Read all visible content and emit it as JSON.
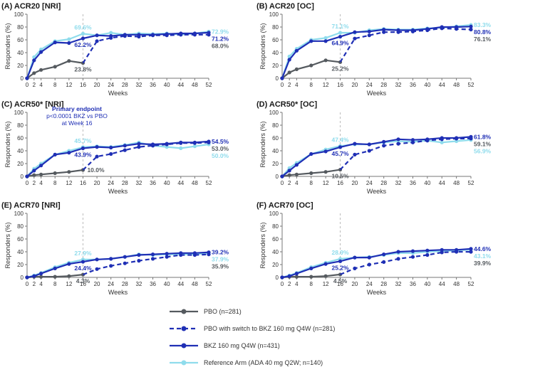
{
  "colors": {
    "pbo": "#555a5f",
    "switch": "#1f2fb5",
    "bkz": "#1f2fb5",
    "ref": "#8fdcec",
    "axis": "#777777",
    "refline": "#bbbbbb"
  },
  "legend": [
    {
      "key": "pbo",
      "label": "PBO (n=281)"
    },
    {
      "key": "switch",
      "label": "PBO with switch to BKZ 160 mg Q4W (n=281)"
    },
    {
      "key": "bkz",
      "label": "BKZ 160 mg Q4W (n=431)"
    },
    {
      "key": "ref",
      "label": "Reference Arm (ADA 40 mg Q2W; n=140)"
    }
  ],
  "chart_data": [
    {
      "type": "line",
      "title": "(A) ACR20 [NRI]",
      "xlabel": "Weeks",
      "ylabel": "Responders (%)",
      "xlim": [
        0,
        52
      ],
      "ylim": [
        0,
        100
      ],
      "xticks": [
        0,
        2,
        4,
        8,
        12,
        16,
        20,
        24,
        28,
        32,
        36,
        40,
        44,
        48,
        52
      ],
      "yticks": [
        0,
        20,
        40,
        60,
        80,
        100
      ],
      "series": [
        {
          "key": "pbo",
          "x": [
            0,
            2,
            4,
            8,
            12,
            16
          ],
          "y": [
            0,
            8,
            13,
            18,
            27,
            23.8
          ]
        },
        {
          "key": "switch",
          "x": [
            16,
            20,
            24,
            28,
            32,
            36,
            40,
            44,
            48,
            52
          ],
          "y": [
            23.8,
            58,
            63,
            66,
            65,
            67,
            67,
            68,
            68,
            68.0
          ]
        },
        {
          "key": "bkz",
          "x": [
            0,
            2,
            4,
            8,
            12,
            16,
            20,
            24,
            28,
            32,
            36,
            40,
            44,
            48,
            52
          ],
          "y": [
            0,
            28,
            41,
            56,
            55,
            62.2,
            67,
            66,
            68,
            68,
            68,
            69,
            70,
            70,
            71.2
          ]
        },
        {
          "key": "ref",
          "x": [
            0,
            2,
            4,
            8,
            12,
            16,
            20,
            24,
            28,
            32,
            36,
            40,
            44,
            48,
            52
          ],
          "y": [
            0,
            33,
            45,
            58,
            61,
            69.6,
            67,
            71,
            68,
            70,
            69,
            70,
            68,
            70,
            72.9
          ]
        }
      ],
      "annotations": [
        {
          "text": "69.6%",
          "key": "ref",
          "x": 16,
          "y": 69.6,
          "pos": "above"
        },
        {
          "text": "62.2%",
          "key": "bkz",
          "x": 16,
          "y": 62.2,
          "pos": "below"
        },
        {
          "text": "23.8%",
          "key": "pbo",
          "x": 16,
          "y": 23.8,
          "pos": "below"
        }
      ],
      "end_labels": [
        {
          "text": "72.9%",
          "key": "ref",
          "y": 72.9
        },
        {
          "text": "71.2%",
          "key": "bkz",
          "y": 71.2
        },
        {
          "text": "68.0%",
          "key": "pbo",
          "y": 68.0
        }
      ],
      "note": []
    },
    {
      "type": "line",
      "title": "(B) ACR20 [OC]",
      "xlabel": "Weeks",
      "ylabel": "Responders (%)",
      "xlim": [
        0,
        52
      ],
      "ylim": [
        0,
        100
      ],
      "xticks": [
        0,
        2,
        4,
        8,
        12,
        16,
        20,
        24,
        28,
        32,
        36,
        40,
        44,
        48,
        52
      ],
      "yticks": [
        0,
        20,
        40,
        60,
        80,
        100
      ],
      "series": [
        {
          "key": "pbo",
          "x": [
            0,
            2,
            4,
            8,
            12,
            16
          ],
          "y": [
            0,
            9,
            14,
            20,
            28,
            25.2
          ]
        },
        {
          "key": "switch",
          "x": [
            16,
            20,
            24,
            28,
            32,
            36,
            40,
            44,
            48,
            52
          ],
          "y": [
            25.2,
            62,
            67,
            72,
            72,
            73,
            75,
            78,
            77,
            76.1
          ]
        },
        {
          "key": "bkz",
          "x": [
            0,
            2,
            4,
            8,
            12,
            16,
            20,
            24,
            28,
            32,
            36,
            40,
            44,
            48,
            52
          ],
          "y": [
            0,
            29,
            43,
            58,
            58,
            64.9,
            72,
            73,
            76,
            75,
            75,
            77,
            80,
            80,
            80.8
          ]
        },
        {
          "key": "ref",
          "x": [
            0,
            2,
            4,
            8,
            12,
            16,
            20,
            24,
            28,
            32,
            36,
            40,
            44,
            48,
            52
          ],
          "y": [
            0,
            34,
            46,
            60,
            63,
            71.1,
            71,
            75,
            77,
            76,
            76,
            78,
            79,
            81,
            83.3
          ]
        }
      ],
      "annotations": [
        {
          "text": "71.1%",
          "key": "ref",
          "x": 16,
          "y": 71.1,
          "pos": "above"
        },
        {
          "text": "64.9%",
          "key": "bkz",
          "x": 16,
          "y": 64.9,
          "pos": "below"
        },
        {
          "text": "25.2%",
          "key": "pbo",
          "x": 16,
          "y": 25.2,
          "pos": "below"
        }
      ],
      "end_labels": [
        {
          "text": "83.3%",
          "key": "ref",
          "y": 83.3
        },
        {
          "text": "80.8%",
          "key": "bkz",
          "y": 80.8
        },
        {
          "text": "76.1%",
          "key": "pbo",
          "y": 76.1
        }
      ],
      "note": []
    },
    {
      "type": "line",
      "title": "(C) ACR50* [NRI]",
      "xlabel": "Weeks",
      "ylabel": "Responders (%)",
      "xlim": [
        0,
        52
      ],
      "ylim": [
        0,
        100
      ],
      "xticks": [
        0,
        2,
        4,
        8,
        12,
        16,
        20,
        24,
        28,
        32,
        36,
        40,
        44,
        48,
        52
      ],
      "yticks": [
        0,
        20,
        40,
        60,
        80,
        100
      ],
      "series": [
        {
          "key": "pbo",
          "x": [
            0,
            2,
            4,
            8,
            12,
            16
          ],
          "y": [
            0,
            2,
            3,
            5,
            7,
            10.0
          ]
        },
        {
          "key": "switch",
          "x": [
            16,
            20,
            24,
            28,
            32,
            36,
            40,
            44,
            48,
            52
          ],
          "y": [
            10.0,
            31,
            35,
            41,
            46,
            48,
            50,
            52,
            52,
            53.0
          ]
        },
        {
          "key": "bkz",
          "x": [
            0,
            2,
            4,
            8,
            12,
            16,
            20,
            24,
            28,
            32,
            36,
            40,
            44,
            48,
            52
          ],
          "y": [
            0,
            9,
            17,
            34,
            37,
            43.9,
            46,
            45,
            48,
            51,
            50,
            51,
            53,
            53,
            54.5
          ]
        },
        {
          "key": "ref",
          "x": [
            0,
            2,
            4,
            8,
            12,
            16,
            20,
            24,
            28,
            32,
            36,
            40,
            44,
            48,
            52
          ],
          "y": [
            0,
            12,
            20,
            34,
            40,
            45.7,
            47,
            46,
            49,
            53,
            48,
            46,
            44,
            47,
            50.0
          ]
        }
      ],
      "annotations": [
        {
          "text": "45.7%",
          "key": "ref",
          "x": 16,
          "y": 45.7,
          "pos": "above"
        },
        {
          "text": "43.9%",
          "key": "bkz",
          "x": 16,
          "y": 43.9,
          "pos": "below"
        },
        {
          "text": "10.0%",
          "key": "pbo",
          "x": 16,
          "y": 10.0,
          "pos": "right"
        }
      ],
      "end_labels": [
        {
          "text": "54.5%",
          "key": "bkz",
          "y": 54.5
        },
        {
          "text": "53.0%",
          "key": "pbo",
          "y": 53.0
        },
        {
          "text": "50.0%",
          "key": "ref",
          "y": 50.0
        }
      ],
      "note": [
        "Primary endpoint",
        "p<0.0001 BKZ vs PBO",
        "at Week 16"
      ]
    },
    {
      "type": "line",
      "title": "(D) ACR50* [OC]",
      "xlabel": "Weeks",
      "ylabel": "Responders (%)",
      "xlim": [
        0,
        52
      ],
      "ylim": [
        0,
        100
      ],
      "xticks": [
        0,
        2,
        4,
        8,
        12,
        16,
        20,
        24,
        28,
        32,
        36,
        40,
        44,
        48,
        52
      ],
      "yticks": [
        0,
        20,
        40,
        60,
        80,
        100
      ],
      "series": [
        {
          "key": "pbo",
          "x": [
            0,
            2,
            4,
            8,
            12,
            16
          ],
          "y": [
            0,
            2,
            3,
            5,
            7,
            10.5
          ]
        },
        {
          "key": "switch",
          "x": [
            16,
            20,
            24,
            28,
            32,
            36,
            40,
            44,
            48,
            52
          ],
          "y": [
            10.5,
            34,
            40,
            48,
            51,
            53,
            56,
            58,
            59,
            59.1
          ]
        },
        {
          "key": "bkz",
          "x": [
            0,
            2,
            4,
            8,
            12,
            16,
            20,
            24,
            28,
            32,
            36,
            40,
            44,
            48,
            52
          ],
          "y": [
            0,
            9,
            18,
            35,
            39,
            45.7,
            51,
            50,
            54,
            58,
            57,
            58,
            60,
            60,
            61.8
          ]
        },
        {
          "key": "ref",
          "x": [
            0,
            2,
            4,
            8,
            12,
            16,
            20,
            24,
            28,
            32,
            36,
            40,
            44,
            48,
            52
          ],
          "y": [
            0,
            13,
            21,
            35,
            42,
            47.4,
            50,
            50,
            53,
            55,
            54,
            56,
            53,
            55,
            56.9
          ]
        }
      ],
      "annotations": [
        {
          "text": "47.4%",
          "key": "ref",
          "x": 16,
          "y": 47.4,
          "pos": "above"
        },
        {
          "text": "45.7%",
          "key": "bkz",
          "x": 16,
          "y": 45.7,
          "pos": "below"
        },
        {
          "text": "10.5%",
          "key": "pbo",
          "x": 16,
          "y": 10.5,
          "pos": "below"
        }
      ],
      "end_labels": [
        {
          "text": "61.8%",
          "key": "bkz",
          "y": 61.8
        },
        {
          "text": "59.1%",
          "key": "pbo",
          "y": 59.1
        },
        {
          "text": "56.9%",
          "key": "ref",
          "y": 56.9
        }
      ],
      "note": []
    },
    {
      "type": "line",
      "title": "(E) ACR70 [NRI]",
      "xlabel": "Weeks",
      "ylabel": "Responders (%)",
      "xlim": [
        0,
        52
      ],
      "ylim": [
        0,
        100
      ],
      "xticks": [
        0,
        2,
        4,
        8,
        12,
        16,
        20,
        24,
        28,
        32,
        36,
        40,
        44,
        48,
        52
      ],
      "yticks": [
        0,
        20,
        40,
        60,
        80,
        100
      ],
      "series": [
        {
          "key": "pbo",
          "x": [
            0,
            2,
            4,
            8,
            12,
            16
          ],
          "y": [
            0,
            1,
            1,
            1,
            2,
            4.3
          ]
        },
        {
          "key": "switch",
          "x": [
            16,
            20,
            24,
            28,
            32,
            36,
            40,
            44,
            48,
            52
          ],
          "y": [
            4.3,
            13,
            18,
            22,
            26,
            29,
            32,
            35,
            35,
            35.9
          ]
        },
        {
          "key": "bkz",
          "x": [
            0,
            2,
            4,
            8,
            12,
            16,
            20,
            24,
            28,
            32,
            36,
            40,
            44,
            48,
            52
          ],
          "y": [
            0,
            2,
            6,
            14,
            21,
            24.4,
            28,
            29,
            32,
            35,
            36,
            37,
            38,
            38,
            39.2
          ]
        },
        {
          "key": "ref",
          "x": [
            0,
            2,
            4,
            8,
            12,
            16,
            20,
            24,
            28,
            32,
            36,
            40,
            44,
            48,
            52
          ],
          "y": [
            0,
            3,
            7,
            16,
            23,
            27.9,
            28,
            29,
            32,
            36,
            35,
            36,
            36,
            36,
            37.9
          ]
        }
      ],
      "annotations": [
        {
          "text": "27.9%",
          "key": "ref",
          "x": 16,
          "y": 27.9,
          "pos": "above"
        },
        {
          "text": "24.4%",
          "key": "bkz",
          "x": 16,
          "y": 24.4,
          "pos": "below"
        },
        {
          "text": "4.3%",
          "key": "pbo",
          "x": 16,
          "y": 4.3,
          "pos": "below"
        }
      ],
      "end_labels": [
        {
          "text": "39.2%",
          "key": "bkz",
          "y": 39.2
        },
        {
          "text": "37.9%",
          "key": "ref",
          "y": 37.9
        },
        {
          "text": "35.9%",
          "key": "pbo",
          "y": 35.9
        }
      ],
      "note": []
    },
    {
      "type": "line",
      "title": "(F) ACR70 [OC]",
      "xlabel": "Weeks",
      "ylabel": "Responders (%)",
      "xlim": [
        0,
        52
      ],
      "ylim": [
        0,
        100
      ],
      "xticks": [
        0,
        2,
        4,
        8,
        12,
        16,
        20,
        24,
        28,
        32,
        36,
        40,
        44,
        48,
        52
      ],
      "yticks": [
        0,
        20,
        40,
        60,
        80,
        100
      ],
      "series": [
        {
          "key": "pbo",
          "x": [
            0,
            2,
            4,
            8,
            12,
            16
          ],
          "y": [
            0,
            1,
            1,
            1,
            2,
            4.5
          ]
        },
        {
          "key": "switch",
          "x": [
            16,
            20,
            24,
            28,
            32,
            36,
            40,
            44,
            48,
            52
          ],
          "y": [
            4.5,
            14,
            20,
            24,
            29,
            32,
            35,
            39,
            40,
            39.9
          ]
        },
        {
          "key": "bkz",
          "x": [
            0,
            2,
            4,
            8,
            12,
            16,
            20,
            24,
            28,
            32,
            36,
            40,
            44,
            48,
            52
          ],
          "y": [
            0,
            2,
            6,
            14,
            21,
            25.2,
            31,
            31,
            36,
            40,
            41,
            42,
            43,
            43,
            44.6
          ]
        },
        {
          "key": "ref",
          "x": [
            0,
            2,
            4,
            8,
            12,
            16,
            20,
            24,
            28,
            32,
            36,
            40,
            44,
            48,
            52
          ],
          "y": [
            0,
            3,
            7,
            16,
            23,
            28.9,
            31,
            32,
            35,
            38,
            38,
            40,
            41,
            42,
            43.1
          ]
        }
      ],
      "annotations": [
        {
          "text": "28.9%",
          "key": "ref",
          "x": 16,
          "y": 28.9,
          "pos": "above"
        },
        {
          "text": "25.2%",
          "key": "bkz",
          "x": 16,
          "y": 25.2,
          "pos": "below"
        },
        {
          "text": "4.5%",
          "key": "pbo",
          "x": 16,
          "y": 4.5,
          "pos": "below"
        }
      ],
      "end_labels": [
        {
          "text": "44.6%",
          "key": "bkz",
          "y": 44.6
        },
        {
          "text": "43.1%",
          "key": "ref",
          "y": 43.1
        },
        {
          "text": "39.9%",
          "key": "pbo",
          "y": 39.9
        }
      ],
      "note": []
    }
  ]
}
